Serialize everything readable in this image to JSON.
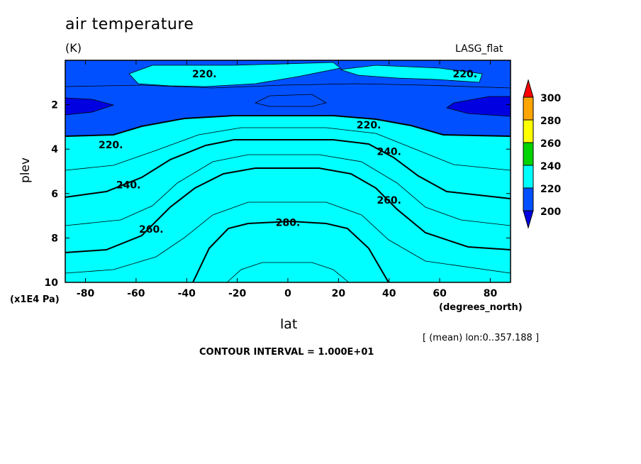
{
  "chart_data": {
    "type": "contour",
    "title": "air temperature",
    "units": "(K)",
    "dataset": "LASG_flat",
    "xlabel": "lat",
    "xunits": "(degrees_north)",
    "ylabel": "plev",
    "yunits": "(x1E4 Pa)",
    "subset": "[ (mean) lon:0..357.188 ]",
    "contour_interval": "CONTOUR INTERVAL = 1.000E+01",
    "xlim": [
      -88,
      88
    ],
    "ylim": [
      10,
      0
    ],
    "y_inverted": true,
    "xticks": [
      "-80",
      "-60",
      "-40",
      "-20",
      "0",
      "20",
      "40",
      "60",
      "80"
    ],
    "yticks": [
      "2",
      "4",
      "6",
      "8",
      "10"
    ],
    "contour_labels": [
      {
        "text": "220.",
        "lat": -33,
        "plev": 0.6
      },
      {
        "text": "220.",
        "lat": 70,
        "plev": 0.6
      },
      {
        "text": "220.",
        "lat": 32,
        "plev": 2.9
      },
      {
        "text": "220.",
        "lat": -70,
        "plev": 3.8
      },
      {
        "text": "240.",
        "lat": 40,
        "plev": 4.1
      },
      {
        "text": "240.",
        "lat": -63,
        "plev": 5.6
      },
      {
        "text": "260.",
        "lat": 40,
        "plev": 6.3
      },
      {
        "text": "260.",
        "lat": -54,
        "plev": 7.6
      },
      {
        "text": "280.",
        "lat": 0,
        "plev": 7.3
      }
    ],
    "colorbar": {
      "levels": [
        "200",
        "220",
        "240",
        "260",
        "280",
        "300"
      ],
      "colors": [
        "#0050ff",
        "#00ffff",
        "#00d400",
        "#ffff00",
        "#ffa500",
        "#ff0000"
      ],
      "under_color": "#0000e0",
      "over_color": "#ff0000"
    }
  }
}
